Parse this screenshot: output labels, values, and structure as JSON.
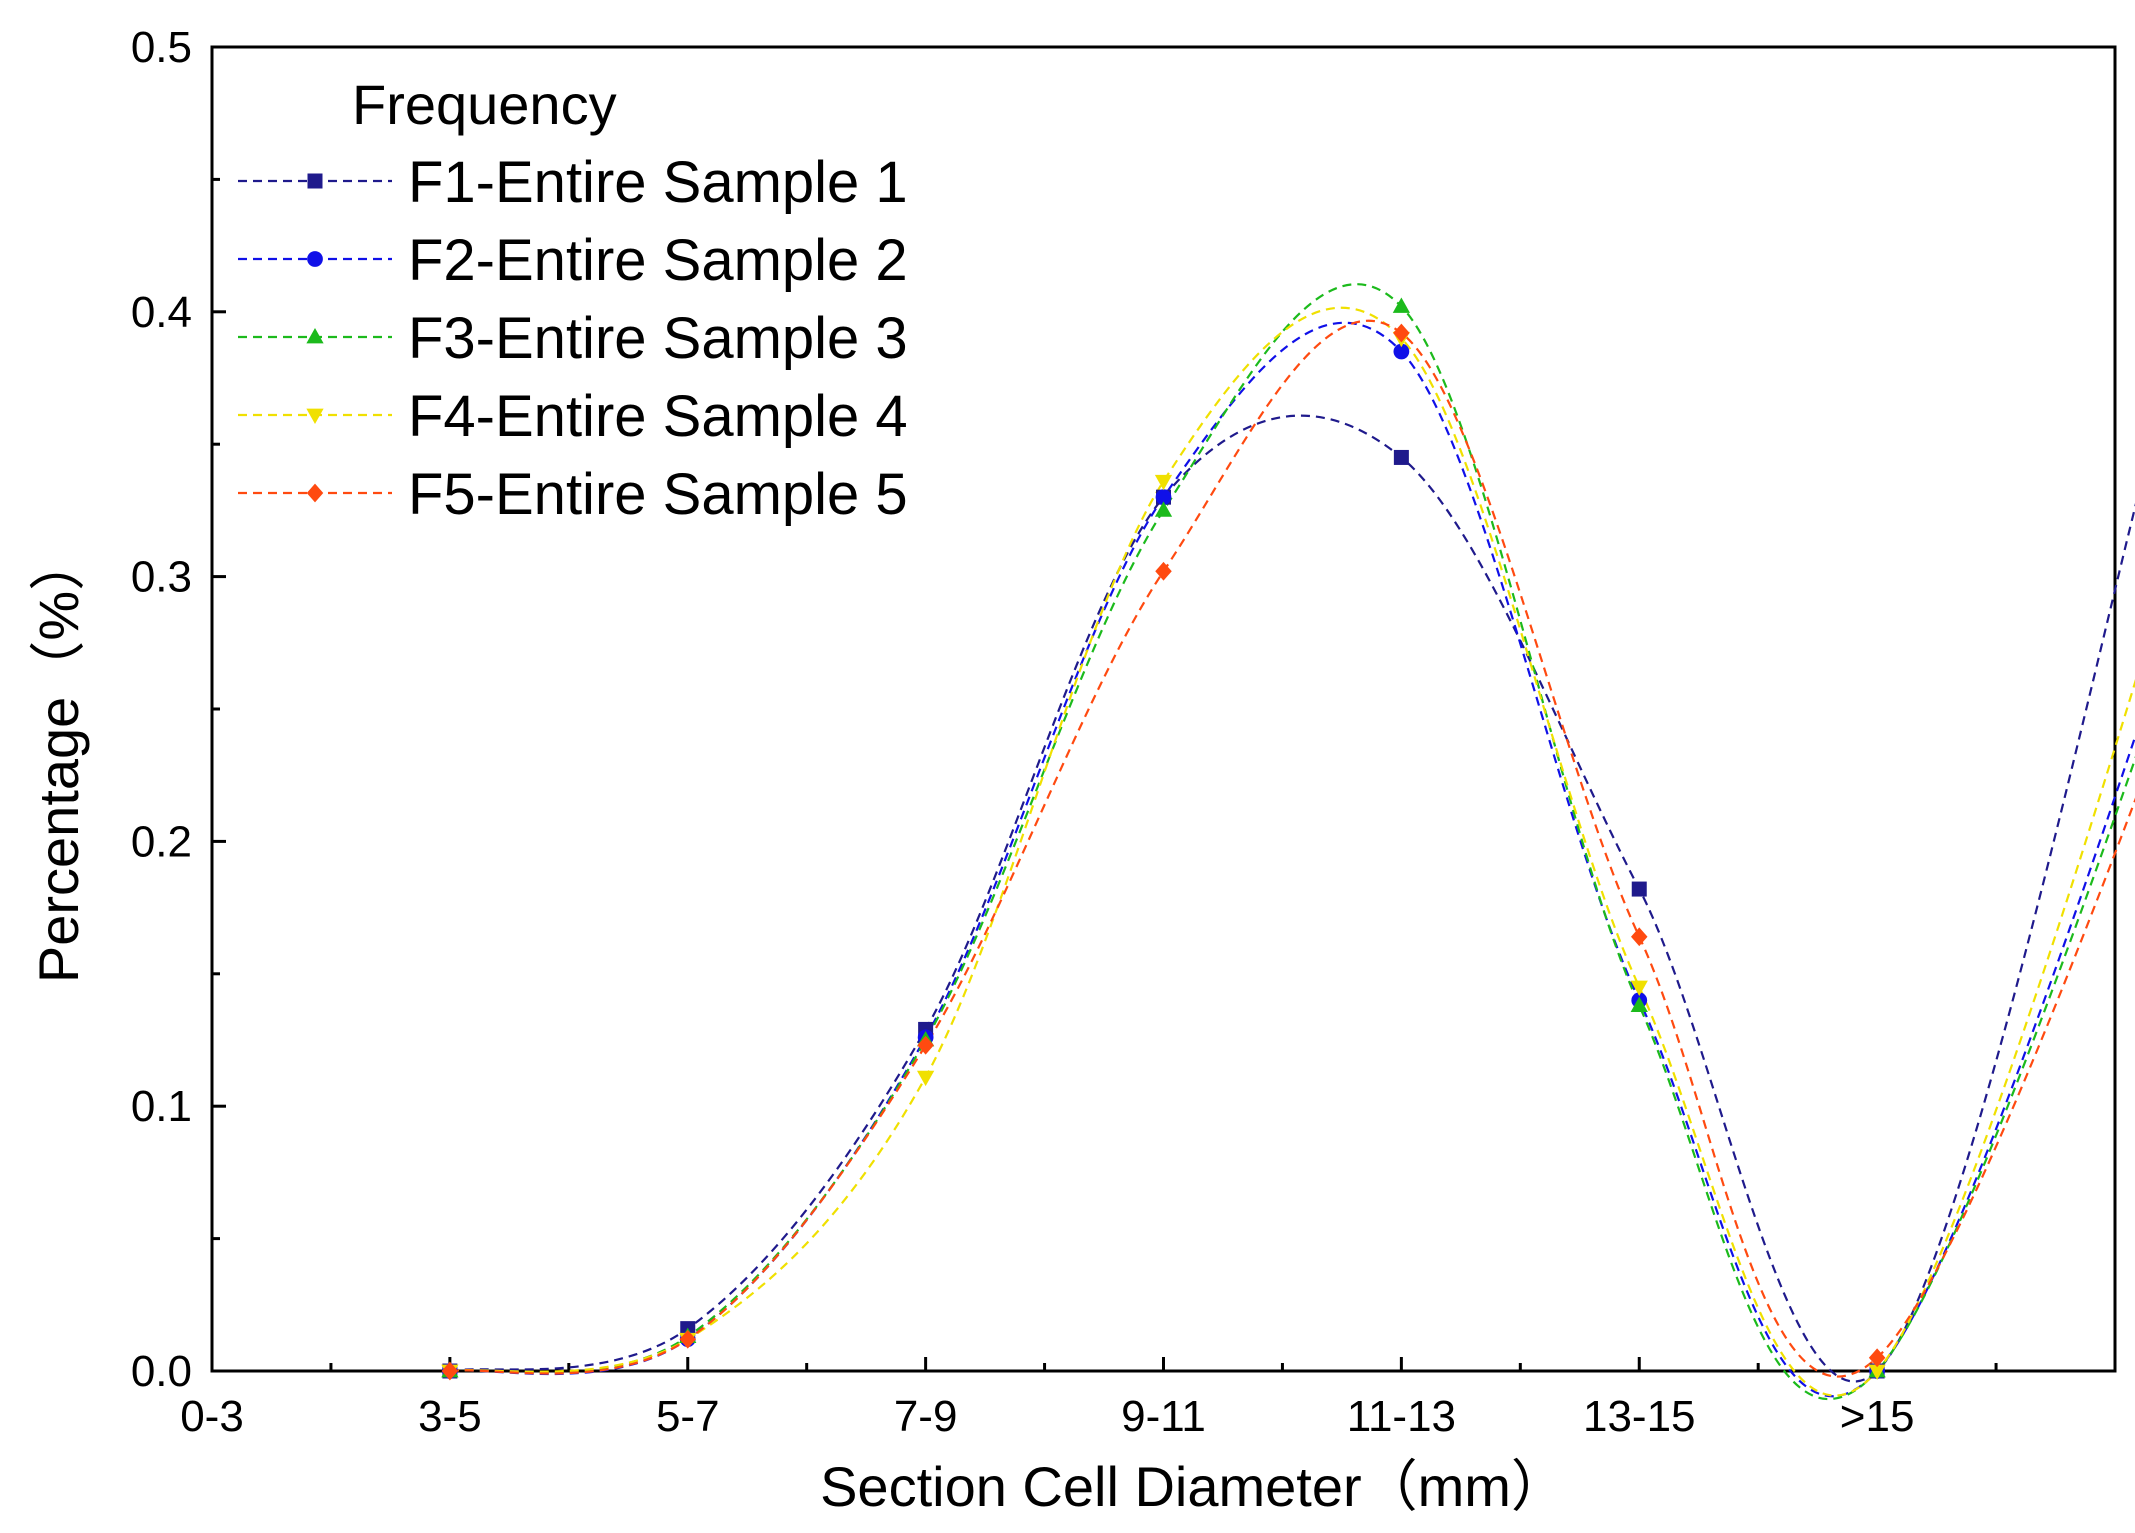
{
  "chart_data": {
    "type": "line",
    "title": "",
    "xlabel": "Section Cell Diameter（mm）",
    "ylabel": "Percentage（%）",
    "categories": [
      "0-3",
      "3-5",
      "5-7",
      "7-9",
      "9-11",
      "11-13",
      "13-15",
      ">15"
    ],
    "ylim": [
      0,
      0.5
    ],
    "yticks": [
      "0.0",
      "0.1",
      "0.2",
      "0.3",
      "0.4",
      "0.5"
    ],
    "grid": false,
    "legend": {
      "title": "Frequency",
      "placement": "top-left"
    },
    "series": [
      {
        "name": "F1-Entire Sample 1",
        "color": "#1f1a8c",
        "marker": "square",
        "x": [
          "3-5",
          "5-7",
          "7-9",
          "9-11",
          "11-13",
          "13-15",
          ">15"
        ],
        "values": [
          0.0,
          0.016,
          0.129,
          0.33,
          0.345,
          0.182,
          0.0
        ],
        "peak": {
          "x": 10.2,
          "y": 0.366
        }
      },
      {
        "name": "F2-Entire Sample 2",
        "color": "#1010e8",
        "marker": "circle",
        "x": [
          "3-5",
          "5-7",
          "7-9",
          "9-11",
          "11-13",
          "13-15",
          ">15"
        ],
        "values": [
          0.0,
          0.012,
          0.126,
          0.33,
          0.385,
          0.14,
          0.0
        ],
        "peak": {
          "x": 10.7,
          "y": 0.405
        }
      },
      {
        "name": "F3-Entire Sample 3",
        "color": "#1cba1c",
        "marker": "triangle-up",
        "x": [
          "3-5",
          "5-7",
          "7-9",
          "9-11",
          "11-13",
          "13-15",
          ">15"
        ],
        "values": [
          0.0,
          0.013,
          0.125,
          0.325,
          0.402,
          0.138,
          0.0
        ],
        "peak": {
          "x": 10.8,
          "y": 0.417
        }
      },
      {
        "name": "F4-Entire Sample 4",
        "color": "#f0e000",
        "marker": "triangle-down",
        "x": [
          "3-5",
          "5-7",
          "7-9",
          "9-11",
          "11-13",
          "13-15",
          ">15"
        ],
        "values": [
          0.0,
          0.012,
          0.111,
          0.336,
          0.39,
          0.145,
          0.0
        ],
        "peak": {
          "x": 10.6,
          "y": 0.41
        }
      },
      {
        "name": "F5-Entire Sample 5",
        "color": "#ff4a10",
        "marker": "diamond",
        "x": [
          "3-5",
          "5-7",
          "7-9",
          "9-11",
          "11-13",
          "13-15",
          ">15"
        ],
        "values": [
          0.0,
          0.012,
          0.123,
          0.302,
          0.392,
          0.164,
          0.005
        ],
        "peak": {
          "x": 10.85,
          "y": 0.4
        }
      }
    ]
  }
}
